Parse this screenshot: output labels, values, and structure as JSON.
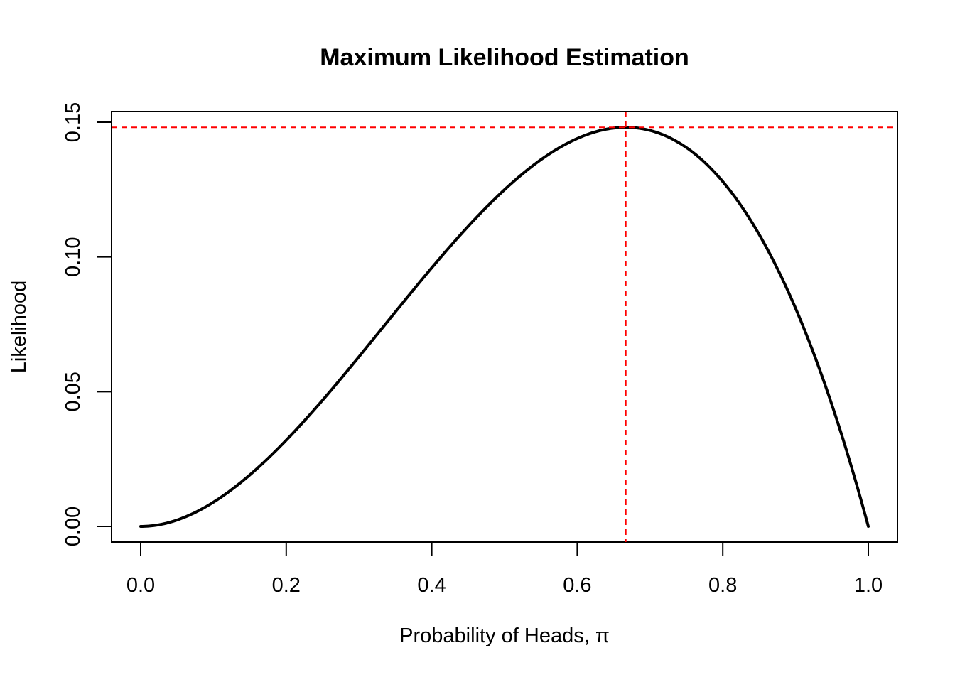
{
  "chart_data": {
    "type": "line",
    "title": "Maximum Likelihood Estimation",
    "xlabel": "Probability of Heads, π",
    "ylabel": "Likelihood",
    "xlim": [
      0.0,
      1.0
    ],
    "ylim": [
      0.0,
      0.15
    ],
    "x_ticks": [
      "0.0",
      "0.2",
      "0.4",
      "0.6",
      "0.8",
      "1.0"
    ],
    "y_ticks": [
      "0.00",
      "0.05",
      "0.10",
      "0.15"
    ],
    "series": [
      {
        "name": "likelihood",
        "color": "#000000",
        "x": [
          0.0,
          0.05,
          0.1,
          0.15,
          0.2,
          0.25,
          0.3,
          0.35,
          0.4,
          0.45,
          0.5,
          0.55,
          0.6,
          0.65,
          0.6667,
          0.7,
          0.75,
          0.8,
          0.85,
          0.9,
          0.95,
          1.0
        ],
        "y": [
          0.0,
          0.0024,
          0.009,
          0.0191,
          0.032,
          0.0469,
          0.063,
          0.0796,
          0.096,
          0.1114,
          0.125,
          0.1361,
          0.144,
          0.1479,
          0.1481,
          0.147,
          0.1406,
          0.128,
          0.1084,
          0.081,
          0.0451,
          0.0
        ]
      }
    ],
    "mle": {
      "x": 0.6667,
      "y": 0.1481,
      "color": "#ff0000"
    }
  }
}
